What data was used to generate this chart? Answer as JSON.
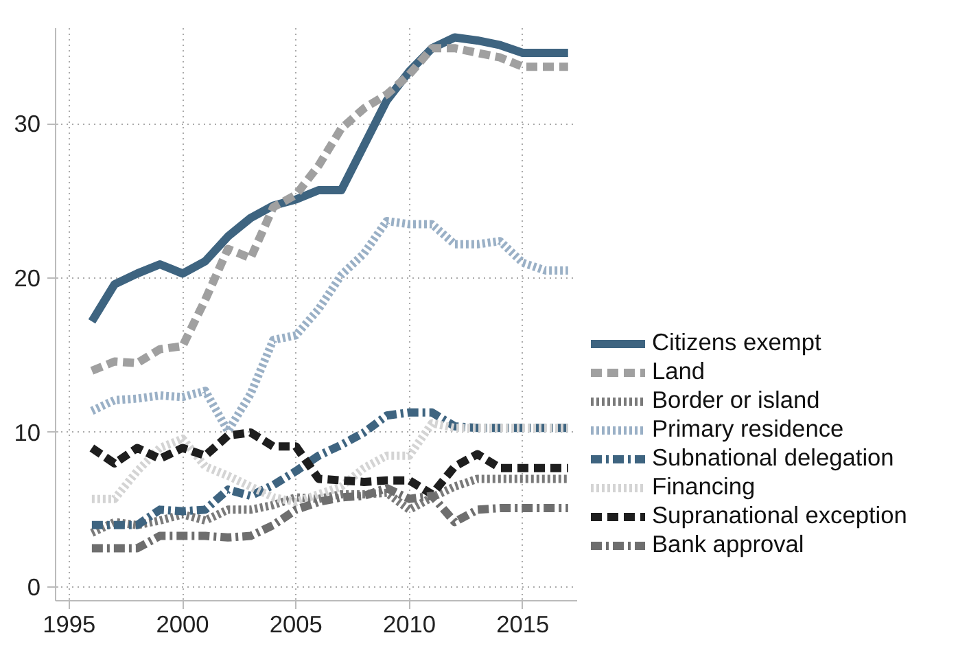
{
  "chart_data": {
    "type": "line",
    "x": [
      1996,
      1997,
      1998,
      1999,
      2000,
      2001,
      2002,
      2003,
      2004,
      2005,
      2006,
      2007,
      2008,
      2009,
      2010,
      2011,
      2012,
      2013,
      2014,
      2015,
      2016,
      2017
    ],
    "series": [
      {
        "name": "Citizens exempt",
        "color": "#3e6480",
        "line_style": "solid",
        "values": [
          17.2,
          19.6,
          20.3,
          20.9,
          20.3,
          21.1,
          22.7,
          23.9,
          24.7,
          25.1,
          25.7,
          25.7,
          28.6,
          31.5,
          33.4,
          34.9,
          35.6,
          35.4,
          35.1,
          34.6,
          34.6,
          34.6
        ]
      },
      {
        "name": "Land",
        "color": "#a0a0a0",
        "line_style": "dashed",
        "values": [
          14.0,
          14.6,
          14.5,
          15.4,
          15.6,
          18.6,
          21.9,
          21.3,
          24.6,
          25.4,
          27.3,
          29.7,
          31.0,
          31.9,
          33.2,
          34.9,
          34.9,
          34.6,
          34.3,
          33.7,
          33.7,
          33.7
        ]
      },
      {
        "name": "Border or island",
        "color": "#7a7a7a",
        "line_style": "dotted",
        "values": [
          3.5,
          4.2,
          4.0,
          4.3,
          4.7,
          4.3,
          5.0,
          5.0,
          5.3,
          5.8,
          5.7,
          6.0,
          6.0,
          6.1,
          5.0,
          5.8,
          6.5,
          7.0,
          7.0,
          7.0,
          7.0,
          7.0
        ]
      },
      {
        "name": "Primary residence",
        "color": "#9ab0c6",
        "line_style": "dotted",
        "values": [
          11.4,
          12.1,
          12.2,
          12.4,
          12.3,
          12.7,
          10.1,
          12.5,
          16.0,
          16.3,
          18.0,
          20.2,
          21.6,
          23.7,
          23.5,
          23.5,
          22.2,
          22.2,
          22.4,
          21.0,
          20.5,
          20.5
        ]
      },
      {
        "name": "Subnational delegation",
        "color": "#3e6480",
        "line_style": "dashdot",
        "values": [
          4.0,
          4.0,
          4.0,
          5.0,
          4.9,
          5.0,
          6.3,
          5.9,
          6.6,
          7.5,
          8.5,
          9.2,
          10.0,
          11.1,
          11.3,
          11.3,
          10.4,
          10.3,
          10.3,
          10.3,
          10.3,
          10.3
        ]
      },
      {
        "name": "Financing",
        "color": "#d4d4d4",
        "line_style": "dotted",
        "values": [
          5.7,
          5.7,
          7.5,
          9.0,
          9.6,
          7.8,
          7.2,
          6.5,
          5.8,
          5.5,
          6.0,
          6.5,
          7.7,
          8.5,
          8.5,
          10.6,
          10.3,
          10.3,
          10.3,
          10.3,
          10.3,
          10.3
        ]
      },
      {
        "name": "Supranational exception",
        "color": "#1e1e1e",
        "line_style": "dashed",
        "values": [
          9.0,
          8.0,
          9.0,
          8.3,
          9.0,
          8.5,
          9.8,
          10.0,
          9.1,
          9.1,
          7.0,
          6.9,
          6.8,
          6.9,
          6.9,
          6.0,
          7.8,
          8.6,
          7.7,
          7.7,
          7.7,
          7.7
        ]
      },
      {
        "name": "Bank approval",
        "color": "#6e6e6e",
        "line_style": "dashdot",
        "values": [
          2.5,
          2.5,
          2.5,
          3.3,
          3.3,
          3.3,
          3.2,
          3.3,
          4.0,
          5.0,
          5.5,
          5.8,
          5.9,
          6.4,
          5.7,
          5.9,
          4.2,
          5.0,
          5.1,
          5.1,
          5.1,
          5.1
        ]
      }
    ],
    "xlim": [
      1994.4,
      2017.4
    ],
    "xticks": [
      1995,
      2000,
      2005,
      2010,
      2015
    ],
    "ylim": [
      -0.9,
      36.2
    ],
    "yticks": [
      0,
      10,
      20,
      30
    ],
    "grid": true,
    "legend": "right"
  }
}
